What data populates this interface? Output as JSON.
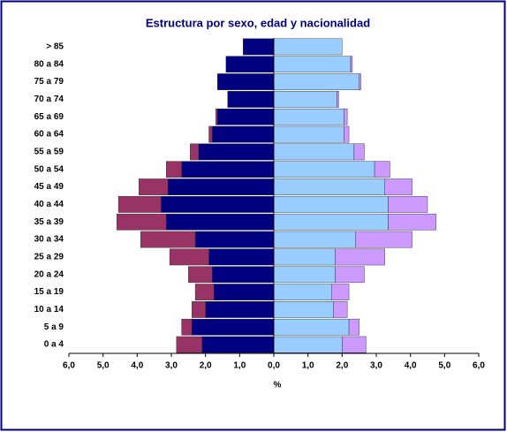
{
  "chart_data": {
    "type": "pyramid",
    "title": "Estructura por sexo, edad y nacionalidad",
    "xlabel": "%",
    "categories": [
      "0 a 4",
      "5 a 9",
      "10 a 14",
      "15 a 19",
      "20 a 24",
      "25 a 29",
      "30 a 34",
      "35 a 39",
      "40 a 44",
      "45 a 49",
      "50 a 54",
      "55 a 59",
      "60 a 64",
      "65 a 69",
      "70 a 74",
      "75 a 79",
      "80 a 84",
      "> 85"
    ],
    "series": [
      {
        "color": "#000080",
        "values": [
          -2.1,
          -2.4,
          -2.0,
          -1.75,
          -1.8,
          -1.9,
          -2.3,
          -3.15,
          -3.3,
          -3.1,
          -2.7,
          -2.2,
          -1.8,
          -1.65,
          -1.35,
          -1.65,
          -1.4,
          -0.9
        ]
      },
      {
        "color": "#993366",
        "values": [
          -0.75,
          -0.3,
          -0.4,
          -0.55,
          -0.7,
          -1.15,
          -1.6,
          -1.45,
          -1.25,
          -0.85,
          -0.45,
          -0.25,
          -0.1,
          -0.05,
          0,
          0,
          0,
          0
        ]
      },
      {
        "color": "#99ccff",
        "values": [
          2.0,
          2.2,
          1.75,
          1.7,
          1.8,
          1.8,
          2.4,
          3.35,
          3.35,
          3.25,
          2.95,
          2.35,
          2.05,
          2.05,
          1.85,
          2.5,
          2.25,
          2.0
        ]
      },
      {
        "color": "#cc99ff",
        "values": [
          0.7,
          0.3,
          0.4,
          0.5,
          0.85,
          1.45,
          1.65,
          1.4,
          1.15,
          0.8,
          0.45,
          0.3,
          0.15,
          0.1,
          0.05,
          0.05,
          0.05,
          0
        ]
      }
    ],
    "xlim": [
      -6,
      6
    ],
    "xticks": [
      {
        "value": -6,
        "label": "6,0"
      },
      {
        "value": -5,
        "label": "5,0"
      },
      {
        "value": -4,
        "label": "4,0"
      },
      {
        "value": -3,
        "label": "3,0"
      },
      {
        "value": -2,
        "label": "2,0"
      },
      {
        "value": -1,
        "label": "1,0"
      },
      {
        "value": 0,
        "label": "0,0"
      },
      {
        "value": 1,
        "label": "1,0"
      },
      {
        "value": 2,
        "label": "2,0"
      },
      {
        "value": 3,
        "label": "3,0"
      },
      {
        "value": 4,
        "label": "4,0"
      },
      {
        "value": 5,
        "label": "5,0"
      },
      {
        "value": 6,
        "label": "6,0"
      }
    ]
  }
}
